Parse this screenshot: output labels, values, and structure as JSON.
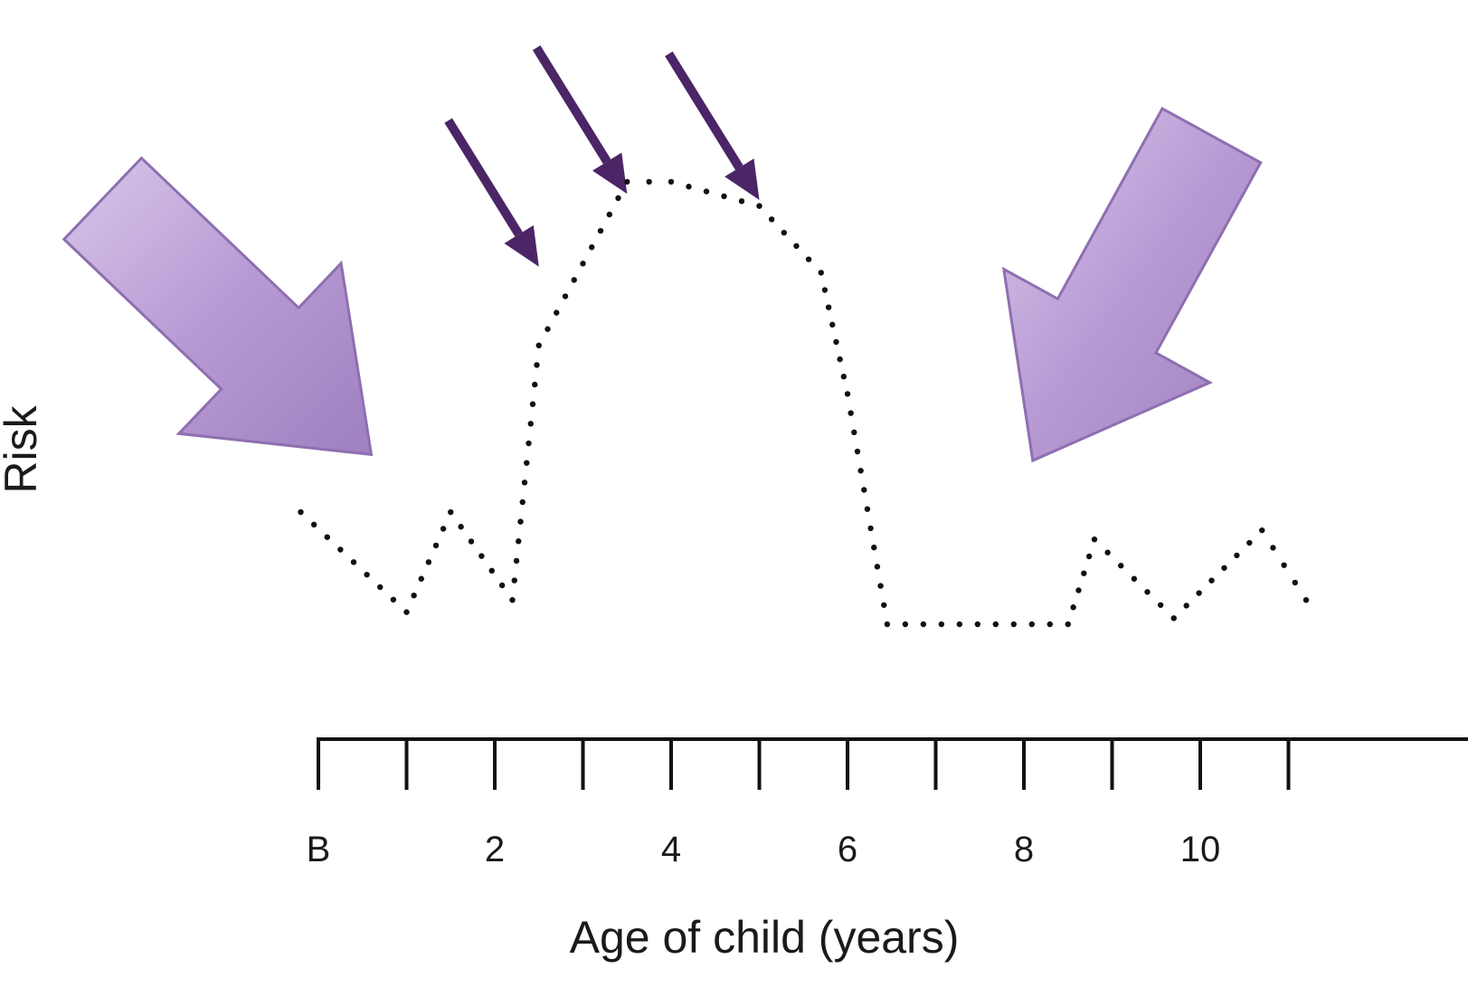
{
  "chart_data": {
    "type": "line",
    "line_style": "dotted",
    "xlabel": "Age of child (years)",
    "ylabel": "Risk",
    "x_tick_labels": [
      "B",
      "2",
      "4",
      "6",
      "8",
      "10"
    ],
    "x_tick_values": [
      0,
      2,
      4,
      6,
      8,
      10
    ],
    "xlim": [
      0,
      12
    ],
    "ylim": [
      0,
      10
    ],
    "grid": false,
    "series": [
      {
        "x": [
          -0.2,
          1.0,
          1.5,
          2.2,
          2.5,
          3.5,
          4.0,
          5.0,
          5.7,
          6.0,
          6.45,
          8.5,
          8.8,
          9.7,
          10.7,
          11.2
        ],
        "y": [
          1.85,
          0.2,
          1.85,
          0.4,
          4.6,
          7.3,
          7.3,
          6.9,
          5.8,
          3.8,
          0.0,
          0.0,
          1.4,
          0.1,
          1.55,
          0.4
        ]
      }
    ],
    "annotations": [
      {
        "type": "large-arrow",
        "color": "#b59ad1",
        "points_to": [
          0.6,
          2.8
        ]
      },
      {
        "type": "large-arrow",
        "color": "#b59ad1",
        "points_to": [
          8.1,
          2.7
        ]
      },
      {
        "type": "thin-arrow",
        "color": "#4b2566",
        "points_to": [
          2.5,
          5.9
        ]
      },
      {
        "type": "thin-arrow",
        "color": "#4b2566",
        "points_to": [
          3.5,
          7.1
        ]
      },
      {
        "type": "thin-arrow",
        "color": "#4b2566",
        "points_to": [
          5.0,
          7.0
        ]
      }
    ]
  }
}
